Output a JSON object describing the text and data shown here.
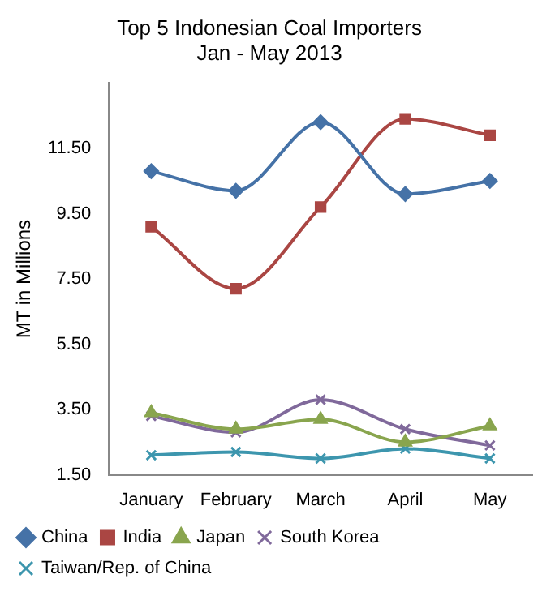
{
  "chart_data": {
    "type": "line",
    "title": "Top 5 Indonesian Coal Importers",
    "subtitle": "Jan - May 2013",
    "ylabel": "MT in Millions",
    "categories": [
      "January",
      "February",
      "March",
      "April",
      "May"
    ],
    "ylim": [
      1.5,
      13.5
    ],
    "yticks": [
      {
        "value": 1.5,
        "label": "1.50"
      },
      {
        "value": 3.5,
        "label": "3.50"
      },
      {
        "value": 5.5,
        "label": "5.50"
      },
      {
        "value": 7.5,
        "label": "7.50"
      },
      {
        "value": 9.5,
        "label": "9.50"
      },
      {
        "value": 11.5,
        "label": "11.50"
      }
    ],
    "grid": false,
    "legend": "bottom",
    "series": [
      {
        "name": "China",
        "color": "#4572a7",
        "marker": "diamond",
        "values": [
          10.8,
          10.2,
          12.3,
          10.1,
          10.5
        ]
      },
      {
        "name": "India",
        "color": "#aa4643",
        "marker": "square",
        "values": [
          9.1,
          7.2,
          9.7,
          12.4,
          11.9
        ]
      },
      {
        "name": "Japan",
        "color": "#89a54e",
        "marker": "triangle",
        "values": [
          3.4,
          2.9,
          3.2,
          2.5,
          3.0
        ]
      },
      {
        "name": "South Korea",
        "color": "#80699b",
        "marker": "cross",
        "values": [
          3.3,
          2.8,
          3.8,
          2.9,
          2.4
        ]
      },
      {
        "name": "Taiwan/Rep. of China",
        "color": "#3d96ae",
        "marker": "cross",
        "values": [
          2.1,
          2.2,
          2.0,
          2.3,
          2.0
        ]
      }
    ]
  }
}
